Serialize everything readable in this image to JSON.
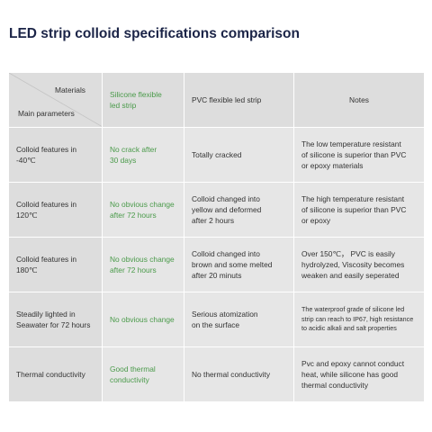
{
  "title": "LED strip colloid specifications comparison",
  "table": {
    "corner_top": "Materials",
    "corner_bottom": "Main parameters",
    "columns": [
      "Silicone flexible\nled strip",
      "PVC flexible led strip",
      "Notes"
    ],
    "rows": [
      {
        "param": "Colloid features in -40℃",
        "silicone": "No crack after\n30 days",
        "pvc": "Totally cracked",
        "notes": "The low temperature resistant\nof silicone is superior than PVC\nor epoxy materials"
      },
      {
        "param": "Colloid features in 120℃",
        "silicone": "No obvious change\nafter 72 hours",
        "pvc": "Colloid changed into\nyellow and deformed\nafter 2 hours",
        "notes": "The high temperature resistant\nof silicone is superior than  PVC\nor epoxy"
      },
      {
        "param": "Colloid features in 180℃",
        "silicone": "No obvious change\nafter 72 hours",
        "pvc": "Colloid changed into\nbrown and some melted\nafter 20 minuts",
        "notes": "Over 150℃， PVC is easily\nhydrolyzed, Viscosity becomes\nweaken and easily seperated"
      },
      {
        "param": "Steadily lighted in\nSeawater for 72 hours",
        "silicone": "No obvious change",
        "pvc": "Serious atomization\non the surface",
        "notes": "The waterproof grade of silicone led\nstrip can reach to IP67, high resistance\nto acidic alkali and salt properties"
      },
      {
        "param": "Thermal conductivity",
        "silicone": "Good thermal\nconductivity",
        "pvc": "No thermal conductivity",
        "notes": "Pvc and epoxy cannot conduct\nheat, while silicone has good\nthermal conductivity"
      }
    ]
  },
  "colors": {
    "title": "#1b2447",
    "green_text": "#4a9a4a",
    "cell_bg": "#e6e6e6",
    "header_bg": "#dddddd"
  }
}
